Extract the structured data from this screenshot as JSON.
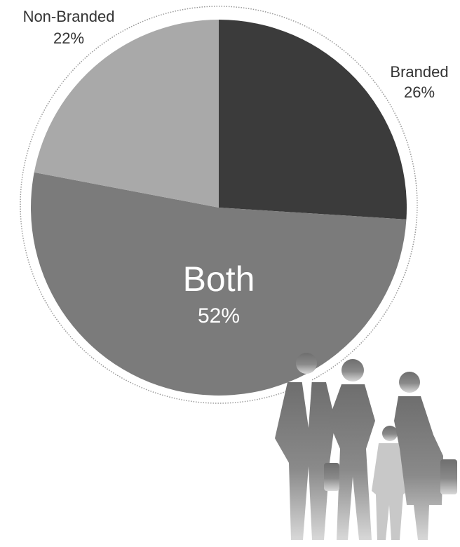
{
  "chart_data": {
    "type": "pie",
    "categories": [
      "Branded",
      "Both",
      "Non-Branded"
    ],
    "values": [
      26,
      52,
      22
    ],
    "value_labels": [
      "26%",
      "52%",
      "22%"
    ],
    "colors": [
      "#3b3b3b",
      "#7b7b7b",
      "#a9a9a9"
    ]
  }
}
